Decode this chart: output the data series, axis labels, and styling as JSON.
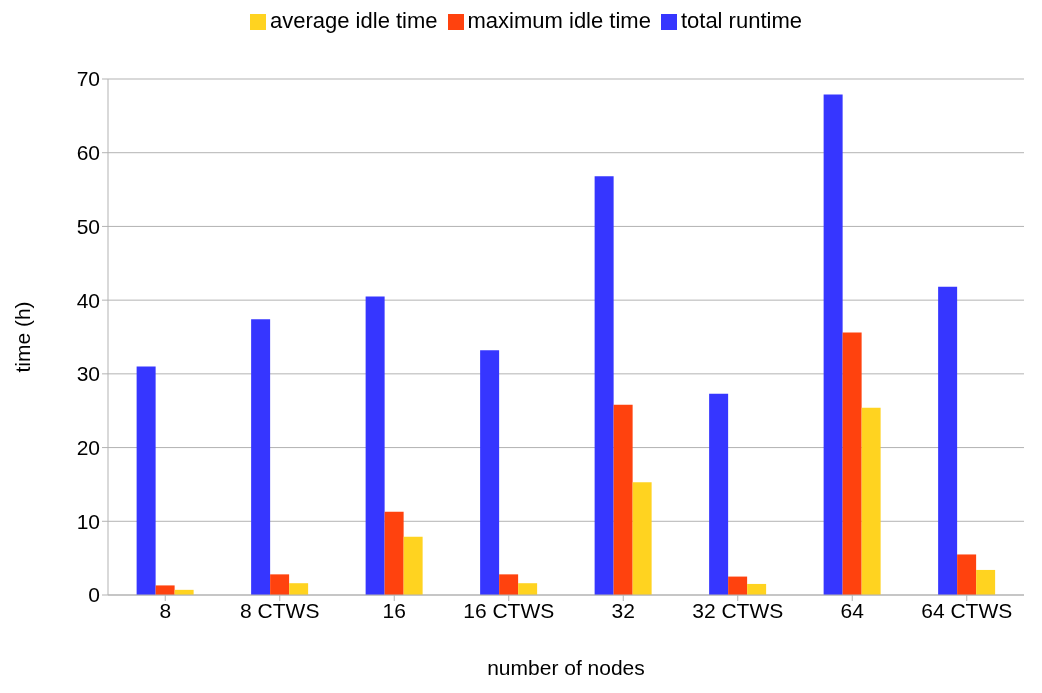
{
  "chart_data": {
    "type": "bar",
    "xlabel": "number of nodes",
    "ylabel": "time (h)",
    "categories": [
      "8",
      "8 CTWS",
      "16",
      "16 CTWS",
      "32",
      "32 CTWS",
      "64",
      "64 CTWS"
    ],
    "series": [
      {
        "name": "total runtime",
        "color": "#3636ff",
        "values": [
          31.0,
          37.4,
          40.5,
          33.2,
          56.8,
          27.3,
          67.9,
          41.8
        ]
      },
      {
        "name": "maximum idle time",
        "color": "#ff420e",
        "values": [
          1.3,
          2.8,
          11.3,
          2.8,
          25.8,
          2.5,
          35.6,
          5.5
        ]
      },
      {
        "name": "average idle time",
        "color": "#ffd320",
        "values": [
          0.7,
          1.6,
          7.9,
          1.6,
          15.3,
          1.5,
          25.4,
          3.4
        ]
      }
    ],
    "ylim": [
      0,
      70
    ],
    "yticks": [
      0,
      10,
      20,
      30,
      40,
      50,
      60,
      70
    ],
    "grid": "y",
    "legend": "top"
  }
}
